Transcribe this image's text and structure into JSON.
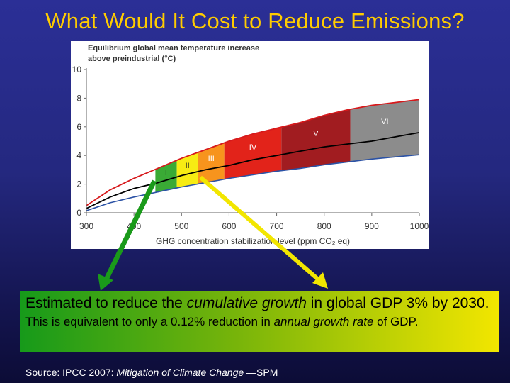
{
  "slide": {
    "title": "What Would It Cost to Reduce Emissions?",
    "callout": {
      "text_1": "Estimated to reduce the ",
      "text_em_1": "cumulative growth",
      "text_2": " in global GDP 3% by 2030.",
      "text_3": " This is equivalent to only a 0.12% reduction in ",
      "text_em_2": "annual growth rate",
      "text_4": " of GDP."
    },
    "source": {
      "prefix": "Source: IPCC 2007: ",
      "title": "Mitigation of Climate Change",
      "suffix": " —SPM"
    }
  },
  "chart_data": {
    "type": "area",
    "ylabel": "Equilibrium global mean temperature increase above preindustrial (°C)",
    "xlabel": "GHG concentration stabilization level (ppm CO₂ eq)",
    "xlim": [
      300,
      1000
    ],
    "ylim": [
      0,
      10
    ],
    "xticks": [
      "300",
      "400",
      "500",
      "600",
      "700",
      "800",
      "900",
      "1000"
    ],
    "yticks": [
      "0",
      "2",
      "4",
      "6",
      "8",
      "10"
    ],
    "curves": {
      "x": [
        300,
        350,
        400,
        450,
        500,
        550,
        600,
        650,
        700,
        750,
        800,
        850,
        900,
        950,
        1000
      ],
      "upper": [
        0.5,
        1.6,
        2.4,
        3.1,
        3.8,
        4.4,
        5.0,
        5.5,
        5.9,
        6.3,
        6.8,
        7.2,
        7.5,
        7.7,
        7.9
      ],
      "best": [
        0.3,
        1.1,
        1.7,
        2.1,
        2.6,
        3.0,
        3.3,
        3.7,
        4.0,
        4.3,
        4.6,
        4.8,
        5.0,
        5.3,
        5.6
      ],
      "lower": [
        0.15,
        0.7,
        1.1,
        1.45,
        1.8,
        2.1,
        2.4,
        2.65,
        2.9,
        3.1,
        3.35,
        3.55,
        3.75,
        3.9,
        4.05
      ]
    },
    "bands": [
      {
        "label": "I",
        "x_start": 445,
        "x_end": 490,
        "color": "#3aaa35"
      },
      {
        "label": "II",
        "x_start": 490,
        "x_end": 535,
        "color": "#f7ec13"
      },
      {
        "label": "III",
        "x_start": 535,
        "x_end": 590,
        "color": "#f7941d"
      },
      {
        "label": "IV",
        "x_start": 590,
        "x_end": 710,
        "color": "#e2231a"
      },
      {
        "label": "V",
        "x_start": 710,
        "x_end": 855,
        "color": "#a11c20"
      },
      {
        "label": "VI",
        "x_start": 855,
        "x_end": 1000,
        "color": "#8c8c8c"
      }
    ],
    "grid": false
  }
}
